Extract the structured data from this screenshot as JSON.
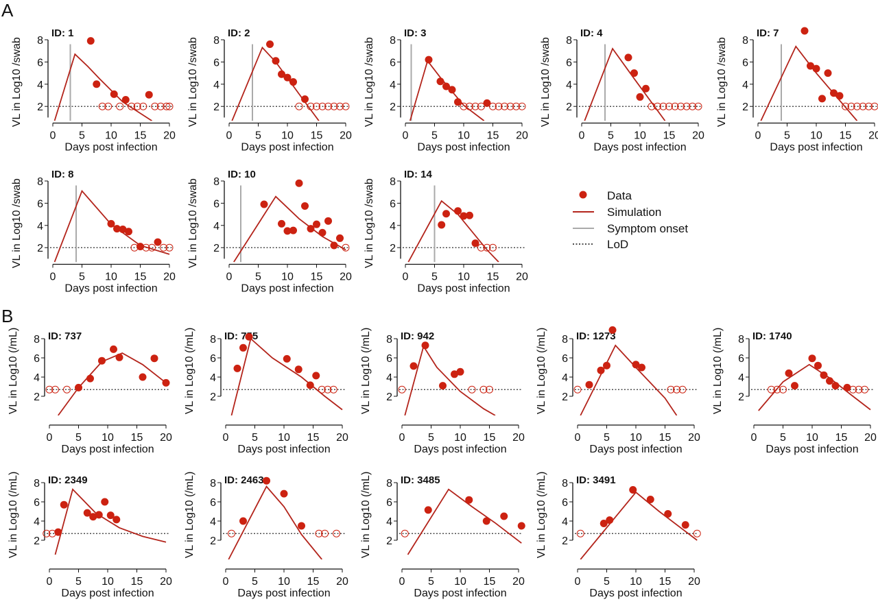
{
  "panel_labels": {
    "a": "A",
    "b": "B"
  },
  "colors": {
    "data": "#cc2211",
    "simulation": "#b3241b",
    "onset": "#aaaaaa",
    "lod": "#111111"
  },
  "legend": {
    "data": "Data",
    "simulation": "Simulation",
    "onset": "Symptom onset",
    "lod": "LoD"
  },
  "chart_data": [
    {
      "group": "A",
      "type": "line",
      "title": "ID: 1",
      "xlabel": "Days post infection",
      "ylabel": "VL in Log10 /swab",
      "xlim": [
        0,
        20
      ],
      "xticks": [
        0,
        5,
        10,
        15,
        20
      ],
      "yticks": [
        2,
        4,
        6,
        8
      ],
      "lod": 2,
      "onset": 3,
      "data": [
        [
          6.5,
          7.9
        ],
        [
          7.5,
          4
        ],
        [
          10.5,
          3.1
        ],
        [
          12.5,
          2.6
        ],
        [
          16.5,
          3.05
        ]
      ],
      "censored_x": [
        8.5,
        9.5,
        11.5,
        13.5,
        14.5,
        15.5,
        17.5,
        18.5,
        19.5,
        20
      ],
      "simulation": [
        [
          0.3,
          0.7
        ],
        [
          3.8,
          6.7
        ],
        [
          6,
          5.6
        ],
        [
          8,
          4.5
        ],
        [
          12,
          2.4
        ],
        [
          17,
          0.7
        ]
      ]
    },
    {
      "group": "A",
      "type": "line",
      "title": "ID: 2",
      "xlabel": "Days post infection",
      "ylabel": "VL in Log10 /swab",
      "xlim": [
        0,
        20
      ],
      "xticks": [
        0,
        5,
        10,
        15,
        20
      ],
      "yticks": [
        2,
        4,
        6,
        8
      ],
      "lod": 2,
      "onset": 4,
      "data": [
        [
          7,
          7.6
        ],
        [
          8,
          6.1
        ],
        [
          9,
          4.9
        ],
        [
          10,
          4.6
        ],
        [
          11,
          4.2
        ],
        [
          13,
          2.65
        ]
      ],
      "censored_x": [
        12,
        14,
        15,
        16,
        17,
        18,
        19,
        20
      ],
      "simulation": [
        [
          0.5,
          0.7
        ],
        [
          5.7,
          7.3
        ],
        [
          8,
          6
        ],
        [
          13,
          2.4
        ],
        [
          15.4,
          0.7
        ]
      ]
    },
    {
      "group": "A",
      "type": "line",
      "title": "ID: 3",
      "xlabel": "Days post infection",
      "ylabel": "VL in Log10 /swab",
      "xlim": [
        0,
        20
      ],
      "xticks": [
        0,
        5,
        10,
        15,
        20
      ],
      "yticks": [
        2,
        4,
        6,
        8
      ],
      "lod": 2,
      "onset": 1,
      "data": [
        [
          4,
          6.2
        ],
        [
          6,
          4.25
        ],
        [
          7,
          3.8
        ],
        [
          8,
          3.5
        ],
        [
          9,
          2.4
        ],
        [
          14,
          2.3
        ]
      ],
      "censored_x": [
        10,
        11,
        12,
        13,
        15,
        16,
        17,
        18,
        19,
        20
      ],
      "simulation": [
        [
          0.8,
          0.7
        ],
        [
          3.8,
          6.1
        ],
        [
          6,
          4.6
        ],
        [
          10,
          2.1
        ],
        [
          13.5,
          0.7
        ]
      ]
    },
    {
      "group": "A",
      "type": "line",
      "title": "ID: 4",
      "xlabel": "Days post infection",
      "ylabel": "VL in Log10 /swab",
      "xlim": [
        0,
        20
      ],
      "xticks": [
        0,
        5,
        10,
        15,
        20
      ],
      "yticks": [
        2,
        4,
        6,
        8
      ],
      "lod": 2,
      "onset": 4,
      "data": [
        [
          8,
          6.4
        ],
        [
          9,
          5
        ],
        [
          10,
          2.85
        ],
        [
          11,
          3.6
        ]
      ],
      "censored_x": [
        12,
        13,
        14,
        15,
        16,
        17,
        18,
        19,
        20
      ],
      "simulation": [
        [
          0.5,
          0.7
        ],
        [
          5.3,
          7.2
        ],
        [
          9,
          4.5
        ],
        [
          14.3,
          0.7
        ]
      ]
    },
    {
      "group": "A",
      "type": "line",
      "title": "ID: 7",
      "xlabel": "Days post infection",
      "ylabel": "VL in Log10 /swab",
      "xlim": [
        0,
        20
      ],
      "xticks": [
        0,
        5,
        10,
        15,
        20
      ],
      "yticks": [
        2,
        4,
        6,
        8
      ],
      "lod": 2,
      "onset": 4,
      "data": [
        [
          8,
          8.8
        ],
        [
          9,
          5.65
        ],
        [
          10,
          5.4
        ],
        [
          11,
          2.7
        ],
        [
          12,
          5
        ],
        [
          13,
          3.2
        ],
        [
          14,
          2.95
        ]
      ],
      "censored_x": [
        15,
        16,
        17,
        18,
        19,
        20
      ],
      "simulation": [
        [
          0.5,
          0.7
        ],
        [
          6.5,
          7.4
        ],
        [
          10,
          5
        ],
        [
          17,
          0.7
        ]
      ]
    },
    {
      "group": "A",
      "type": "line",
      "title": "ID: 8",
      "xlabel": "Days post infection",
      "ylabel": "VL in Log10 /swab",
      "xlim": [
        0,
        20
      ],
      "xticks": [
        0,
        5,
        10,
        15,
        20
      ],
      "yticks": [
        2,
        4,
        6,
        8
      ],
      "lod": 2,
      "onset": 4,
      "data": [
        [
          10,
          4.15
        ],
        [
          11,
          3.7
        ],
        [
          12,
          3.65
        ],
        [
          13,
          3.45
        ],
        [
          15,
          2.1
        ],
        [
          18,
          2.5
        ]
      ],
      "censored_x": [
        14,
        16,
        17,
        19,
        20
      ],
      "simulation": [
        [
          0.3,
          0.7
        ],
        [
          5,
          7.1
        ],
        [
          10,
          4.1
        ],
        [
          15,
          2.2
        ],
        [
          20,
          1.4
        ]
      ]
    },
    {
      "group": "A",
      "type": "line",
      "title": "ID: 10",
      "xlabel": "Days post infection",
      "ylabel": "VL in Log10 /swab",
      "xlim": [
        0,
        20
      ],
      "xticks": [
        0,
        5,
        10,
        15,
        20
      ],
      "yticks": [
        2,
        4,
        6,
        8
      ],
      "lod": 2,
      "onset": 2,
      "data": [
        [
          6,
          5.9
        ],
        [
          9,
          4.15
        ],
        [
          10,
          3.5
        ],
        [
          11,
          3.55
        ],
        [
          12,
          7.8
        ],
        [
          13,
          5.75
        ],
        [
          14,
          3.7
        ],
        [
          15,
          4.1
        ],
        [
          16,
          3.35
        ],
        [
          17,
          4.4
        ],
        [
          18,
          2.2
        ],
        [
          19,
          2.85
        ]
      ],
      "censored_x": [
        20
      ],
      "simulation": [
        [
          0.8,
          0.7
        ],
        [
          8,
          6.6
        ],
        [
          12,
          4.6
        ],
        [
          16,
          3
        ],
        [
          20,
          1.8
        ]
      ]
    },
    {
      "group": "A",
      "type": "line",
      "title": "ID: 14",
      "xlabel": "Days post infection",
      "ylabel": "VL in Log10 /swab",
      "xlim": [
        0,
        20
      ],
      "xticks": [
        0,
        5,
        10,
        15,
        20
      ],
      "yticks": [
        2,
        4,
        6,
        8
      ],
      "lod": 2,
      "onset": 5,
      "data": [
        [
          6.2,
          4.05
        ],
        [
          7,
          5.05
        ],
        [
          9,
          5.3
        ],
        [
          10,
          4.85
        ],
        [
          11,
          4.9
        ],
        [
          12,
          2.4
        ]
      ],
      "censored_x": [
        13,
        14,
        15
      ],
      "simulation": [
        [
          0.5,
          0.7
        ],
        [
          6.2,
          6.2
        ],
        [
          9,
          5
        ],
        [
          14,
          1.8
        ],
        [
          16,
          0.7
        ]
      ]
    },
    {
      "group": "B",
      "type": "line",
      "title": "ID: 737",
      "xlabel": "Days post infection",
      "ylabel": "VL in Log10 (/mL)",
      "xlim": [
        0,
        20
      ],
      "xticks": [
        0,
        5,
        10,
        15,
        20
      ],
      "yticks": [
        2,
        4,
        6,
        8
      ],
      "lod": 2.7,
      "data": [
        [
          5,
          2.9
        ],
        [
          7,
          3.85
        ],
        [
          9,
          5.7
        ],
        [
          11,
          6.9
        ],
        [
          12,
          6.05
        ],
        [
          16,
          4
        ],
        [
          18,
          5.95
        ],
        [
          20,
          3.4
        ]
      ],
      "censored_x": [
        0,
        1,
        3
      ],
      "simulation": [
        [
          1.5,
          0
        ],
        [
          5,
          2.9
        ],
        [
          9,
          5.6
        ],
        [
          12.5,
          6.5
        ],
        [
          16,
          5.3
        ],
        [
          20,
          3.4
        ]
      ]
    },
    {
      "group": "B",
      "type": "line",
      "title": "ID: 755",
      "xlabel": "Days post infection",
      "ylabel": "VL in Log10 (/mL)",
      "xlim": [
        0,
        20
      ],
      "xticks": [
        0,
        5,
        10,
        15,
        20
      ],
      "yticks": [
        2,
        4,
        6,
        8
      ],
      "lod": 2.7,
      "data": [
        [
          2,
          4.9
        ],
        [
          3,
          7.05
        ],
        [
          4,
          8.2
        ],
        [
          10.5,
          5.9
        ],
        [
          12.5,
          4.8
        ],
        [
          14.5,
          3.15
        ],
        [
          15.5,
          4.15
        ]
      ],
      "censored_x": [
        16.5,
        17.5,
        18.5
      ],
      "simulation": [
        [
          1,
          0
        ],
        [
          4.3,
          8
        ],
        [
          8,
          6
        ],
        [
          13,
          4
        ],
        [
          17,
          2
        ],
        [
          20,
          0.6
        ]
      ]
    },
    {
      "group": "B",
      "type": "line",
      "title": "ID: 942",
      "xlabel": "Days post infection",
      "ylabel": "VL in Log10 (/mL)",
      "xlim": [
        0,
        20
      ],
      "xticks": [
        0,
        5,
        10,
        15,
        20
      ],
      "yticks": [
        2,
        4,
        6,
        8
      ],
      "lod": 2.7,
      "data": [
        [
          2,
          5.15
        ],
        [
          4,
          7.3
        ],
        [
          7,
          3.1
        ],
        [
          9,
          4.3
        ],
        [
          10,
          4.55
        ]
      ],
      "censored_x": [
        0,
        12,
        14,
        15
      ],
      "simulation": [
        [
          0.5,
          0
        ],
        [
          3.7,
          7.2
        ],
        [
          6,
          5
        ],
        [
          10,
          2.5
        ],
        [
          14,
          0.7
        ],
        [
          16,
          0
        ]
      ]
    },
    {
      "group": "B",
      "type": "line",
      "title": "ID: 1273",
      "xlabel": "Days post infection",
      "ylabel": "VL in Log10 (/mL)",
      "xlim": [
        0,
        20
      ],
      "xticks": [
        0,
        5,
        10,
        15,
        20
      ],
      "yticks": [
        2,
        4,
        6,
        8
      ],
      "lod": 2.7,
      "data": [
        [
          2,
          3.2
        ],
        [
          4,
          4.7
        ],
        [
          5,
          5.2
        ],
        [
          6,
          8.9
        ],
        [
          10,
          5.3
        ],
        [
          11,
          5
        ]
      ],
      "censored_x": [
        0,
        16,
        17,
        18
      ],
      "simulation": [
        [
          0.5,
          0
        ],
        [
          6.5,
          7.3
        ],
        [
          10,
          5
        ],
        [
          15,
          1.8
        ],
        [
          17,
          0
        ]
      ]
    },
    {
      "group": "B",
      "type": "line",
      "title": "ID: 1740",
      "xlabel": "Days post infection",
      "ylabel": "VL in Log10 (/mL)",
      "xlim": [
        0,
        20
      ],
      "xticks": [
        0,
        5,
        10,
        15,
        20
      ],
      "yticks": [
        2,
        4,
        6,
        8
      ],
      "lod": 2.7,
      "data": [
        [
          6,
          4.4
        ],
        [
          7,
          3.1
        ],
        [
          10,
          5.95
        ],
        [
          11,
          5.2
        ],
        [
          12,
          4.2
        ],
        [
          13,
          3.6
        ],
        [
          14,
          3.1
        ],
        [
          16,
          2.9
        ]
      ],
      "censored_x": [
        3,
        4,
        5,
        17,
        18,
        19
      ],
      "simulation": [
        [
          0.8,
          0.5
        ],
        [
          5,
          3.5
        ],
        [
          9.5,
          5.3
        ],
        [
          13,
          3.9
        ],
        [
          17,
          2
        ],
        [
          20,
          0.6
        ]
      ]
    },
    {
      "group": "B",
      "type": "line",
      "title": "ID: 2349",
      "xlabel": "Days post infection",
      "ylabel": "VL in Log10 (/mL)",
      "xlim": [
        0,
        20
      ],
      "xticks": [
        0,
        5,
        10,
        15,
        20
      ],
      "yticks": [
        2,
        4,
        6,
        8
      ],
      "lod": 2.7,
      "data": [
        [
          1.5,
          2.85
        ],
        [
          2.5,
          5.7
        ],
        [
          6.5,
          4.85
        ],
        [
          7.5,
          4.45
        ],
        [
          8.5,
          4.65
        ],
        [
          9.5,
          6
        ],
        [
          10.5,
          4.6
        ],
        [
          11.5,
          4.15
        ]
      ],
      "censored_x": [
        -0.5,
        0.5
      ],
      "simulation": [
        [
          1,
          0.5
        ],
        [
          4,
          7.3
        ],
        [
          8,
          4.8
        ],
        [
          12,
          3.3
        ],
        [
          16,
          2.4
        ],
        [
          20,
          1.8
        ]
      ]
    },
    {
      "group": "B",
      "type": "line",
      "title": "ID: 2463",
      "xlabel": "Days post infection",
      "ylabel": "VL in Log10 (/mL)",
      "xlim": [
        0,
        20
      ],
      "xticks": [
        0,
        5,
        10,
        15,
        20
      ],
      "yticks": [
        2,
        4,
        6,
        8
      ],
      "lod": 2.7,
      "data": [
        [
          3,
          4
        ],
        [
          7,
          8.2
        ],
        [
          10,
          6.85
        ],
        [
          13,
          3.5
        ]
      ],
      "censored_x": [
        1,
        16,
        17,
        19
      ],
      "simulation": [
        [
          0.5,
          0
        ],
        [
          7,
          7.6
        ],
        [
          10,
          5.5
        ],
        [
          13,
          2.6
        ],
        [
          16.5,
          0
        ]
      ]
    },
    {
      "group": "B",
      "type": "line",
      "title": "ID: 3485",
      "xlabel": "Days post infection",
      "ylabel": "VL in Log10 (/mL)",
      "xlim": [
        0,
        20
      ],
      "xticks": [
        0,
        5,
        10,
        15,
        20
      ],
      "yticks": [
        2,
        4,
        6,
        8
      ],
      "lod": 2.7,
      "data": [
        [
          4.5,
          5.15
        ],
        [
          11.5,
          6.2
        ],
        [
          14.5,
          4
        ],
        [
          17.5,
          4.5
        ],
        [
          20.5,
          3.5
        ]
      ],
      "censored_x": [
        0.5
      ],
      "simulation": [
        [
          1,
          0.5
        ],
        [
          8,
          7.3
        ],
        [
          12,
          5.5
        ],
        [
          16,
          3.8
        ],
        [
          20.5,
          1.7
        ]
      ]
    },
    {
      "group": "B",
      "type": "line",
      "title": "ID: 3491",
      "xlabel": "Days post infection",
      "ylabel": "VL in Log10 (/mL)",
      "xlim": [
        0,
        20
      ],
      "xticks": [
        0,
        5,
        10,
        15,
        20
      ],
      "yticks": [
        2,
        4,
        6,
        8
      ],
      "lod": 2.7,
      "data": [
        [
          4.5,
          3.75
        ],
        [
          5.5,
          4.1
        ],
        [
          9.5,
          7.25
        ],
        [
          12.5,
          6.25
        ],
        [
          15.5,
          4.75
        ],
        [
          18.5,
          3.6
        ]
      ],
      "censored_x": [
        0.5,
        20.5
      ],
      "simulation": [
        [
          0.5,
          0
        ],
        [
          10,
          7
        ],
        [
          14,
          5
        ],
        [
          20.5,
          2
        ]
      ]
    }
  ]
}
